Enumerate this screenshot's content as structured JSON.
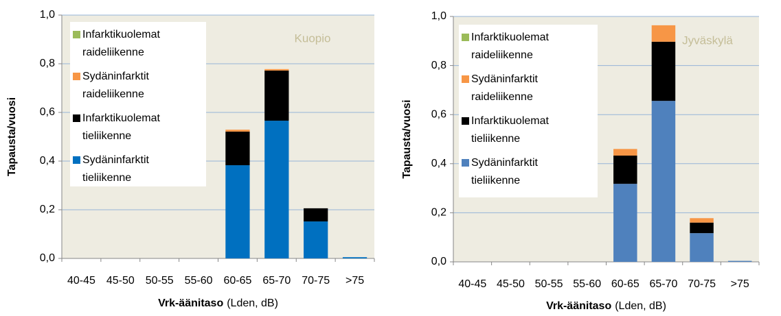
{
  "chart_data": [
    {
      "type": "bar",
      "stacked": true,
      "annotation": "Kuopio",
      "y_label": "Tapausta/vuosi",
      "x_label": "Vrk-äänitaso",
      "x_label_unit": "(Lden, dB)",
      "categories": [
        "40-45",
        "45-50",
        "50-55",
        "55-60",
        "60-65",
        "65-70",
        "70-75",
        ">75"
      ],
      "series": [
        {
          "name": "Sydäninfarktit tieliikenne",
          "color": "#0070c0",
          "values": [
            0,
            0,
            0,
            0,
            0.383,
            0.566,
            0.152,
            0.005
          ]
        },
        {
          "name": "Infarktikuolemat tieliikenne",
          "color": "#000000",
          "values": [
            0,
            0,
            0,
            0,
            0.138,
            0.206,
            0.054,
            0
          ]
        },
        {
          "name": "Sydäninfarktit raideliikenne",
          "color": "#f79646",
          "values": [
            0,
            0,
            0,
            0,
            0.008,
            0.006,
            0,
            0
          ]
        },
        {
          "name": "Infarktikuolemat raideliikenne",
          "color": "#9bbb59",
          "values": [
            0,
            0,
            0,
            0,
            0,
            0,
            0,
            0
          ]
        }
      ],
      "ylim": [
        0,
        1
      ],
      "yticks": [
        {
          "value": 0,
          "label": "0,0"
        },
        {
          "value": 0.2,
          "label": "0,2"
        },
        {
          "value": 0.4,
          "label": "0,4"
        },
        {
          "value": 0.6,
          "label": "0,6"
        },
        {
          "value": 0.8,
          "label": "0,8"
        },
        {
          "value": 1,
          "label": "1,0"
        }
      ],
      "grid": true,
      "legend": "upper left"
    },
    {
      "type": "bar",
      "stacked": true,
      "annotation": "Jyväskylä",
      "y_label": "Tapausta/vuosi",
      "x_label": "Vrk-äänitaso",
      "x_label_unit": "(Lden, dB)",
      "categories": [
        "40-45",
        "45-50",
        "50-55",
        "55-60",
        "60-65",
        "65-70",
        "70-75",
        ">75"
      ],
      "series": [
        {
          "name": "Sydäninfarktit tieliikenne",
          "color": "#4f81bd",
          "values": [
            0,
            0,
            0,
            0,
            0.318,
            0.656,
            0.117,
            0.004
          ]
        },
        {
          "name": "Infarktikuolemat tieliikenne",
          "color": "#000000",
          "values": [
            0,
            0,
            0,
            0,
            0.115,
            0.241,
            0.043,
            0
          ]
        },
        {
          "name": "Sydäninfarktit raideliikenne",
          "color": "#f79646",
          "values": [
            0,
            0,
            0,
            0,
            0.027,
            0.067,
            0.018,
            0
          ]
        },
        {
          "name": "Infarktikuolemat raideliikenne",
          "color": "#9bbb59",
          "values": [
            0,
            0,
            0,
            0,
            0,
            0,
            0,
            0
          ]
        }
      ],
      "ylim": [
        0,
        1
      ],
      "yticks": [
        {
          "value": 0,
          "label": "0,0"
        },
        {
          "value": 0.2,
          "label": "0,2"
        },
        {
          "value": 0.4,
          "label": "0,4"
        },
        {
          "value": 0.6,
          "label": "0,6"
        },
        {
          "value": 0.8,
          "label": "0,8"
        },
        {
          "value": 1,
          "label": "1,0"
        }
      ],
      "grid": true,
      "legend": "upper left"
    }
  ]
}
